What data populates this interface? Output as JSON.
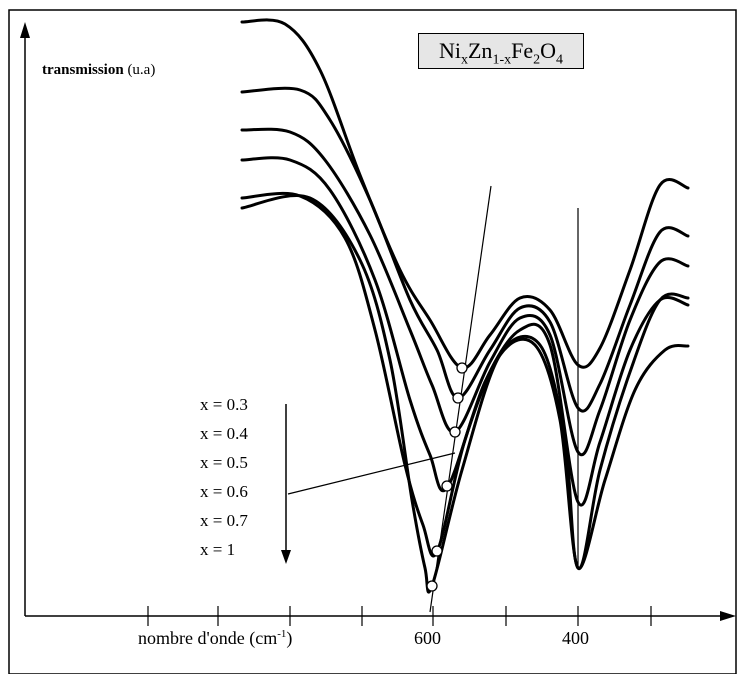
{
  "formula": {
    "main1": "Ni",
    "sub1": "x",
    "main2": "Zn",
    "sub2": "1-x",
    "main3": "Fe",
    "sub3": "2",
    "main4": "O",
    "sub4": "4"
  },
  "y_axis_label": {
    "bold": "transmission",
    "unit": " (u.a)"
  },
  "x_axis_label": {
    "text": "nombre d'onde (cm",
    "sup": "-1",
    "close": ")"
  },
  "chart_data": {
    "type": "line",
    "x_axis": {
      "ticks_labeled": [
        600,
        400
      ],
      "direction": "decreasing to the right"
    },
    "y_axis": {
      "label": "transmission (u.a)"
    },
    "series": [
      {
        "name": "x = 0.3",
        "band1_min_wavenumber": 560,
        "band2_min_wavenumber": 400
      },
      {
        "name": "x = 0.4",
        "band1_min_wavenumber": 565,
        "band2_min_wavenumber": 400
      },
      {
        "name": "x = 0.5",
        "band1_min_wavenumber": 569,
        "band2_min_wavenumber": 400
      },
      {
        "name": "x = 0.6",
        "band1_min_wavenumber": 583,
        "band2_min_wavenumber": 400
      },
      {
        "name": "x = 0.7",
        "band1_min_wavenumber": 596,
        "band2_min_wavenumber": 400
      },
      {
        "name": "x = 1",
        "band1_min_wavenumber": 603,
        "band2_min_wavenumber": 400
      }
    ]
  },
  "legend": [
    "x = 0.3",
    "x = 0.4",
    "x = 0.5",
    "x = 0.6",
    "x = 0.7",
    "x = 1"
  ]
}
